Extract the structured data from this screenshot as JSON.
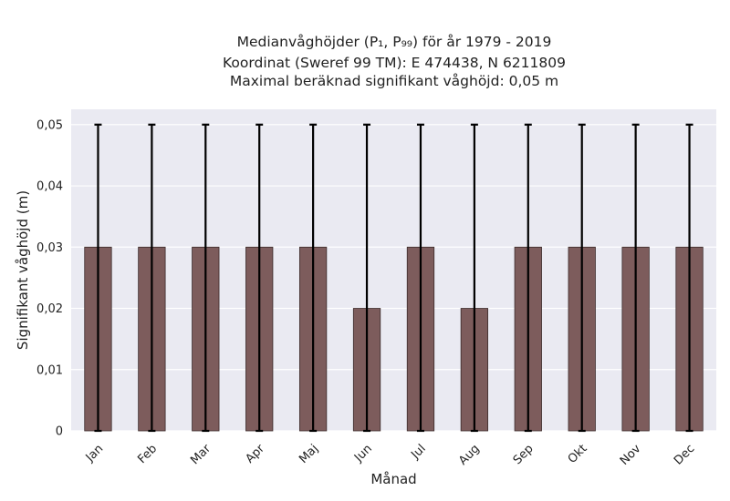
{
  "chart_data": {
    "type": "bar",
    "title_lines": [
      "Medianvåghöjder (P₁, P₉₉) för år 1979 - 2019",
      "Koordinat (Sweref 99 TM): E 474438, N 6211809",
      "Maximal beräknad signifikant våghöjd: 0,05 m"
    ],
    "xlabel": "Månad",
    "ylabel": "Signifikant våghöjd (m)",
    "categories": [
      "Jan",
      "Feb",
      "Mar",
      "Apr",
      "Maj",
      "Jun",
      "Jul",
      "Aug",
      "Sep",
      "Okt",
      "Nov",
      "Dec"
    ],
    "values": [
      0.03,
      0.03,
      0.03,
      0.03,
      0.03,
      0.02,
      0.03,
      0.02,
      0.03,
      0.03,
      0.03,
      0.03
    ],
    "error_low": [
      0,
      0,
      0,
      0,
      0,
      0,
      0,
      0,
      0,
      0,
      0,
      0
    ],
    "error_high": [
      0.05,
      0.05,
      0.05,
      0.05,
      0.05,
      0.05,
      0.05,
      0.05,
      0.05,
      0.05,
      0.05,
      0.05
    ],
    "ylim": [
      0,
      0.0525
    ],
    "yticks": [
      0,
      0.01,
      0.02,
      0.03,
      0.04,
      0.05
    ],
    "ytick_labels": [
      "0",
      "0,01",
      "0,02",
      "0,03",
      "0,04",
      "0,05"
    ],
    "grid": true,
    "bar_color": "#7d5c5c",
    "background_color": "#eaeaf2"
  }
}
